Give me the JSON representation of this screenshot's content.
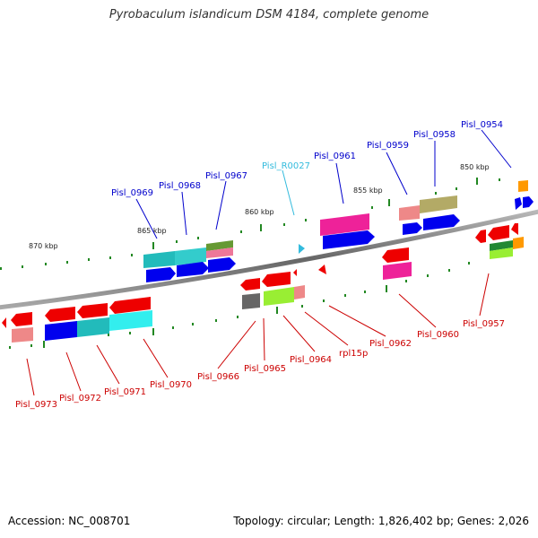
{
  "title": "Pyrobaculum islandicum DSM 4184, complete genome",
  "footer": {
    "accession": "Accession: NC_008701",
    "summary": "Topology: circular; Length: 1,826,402 bp; Genes: 2,026"
  },
  "colors": {
    "forward_label": "#0000cc",
    "reverse_label": "#cc0000",
    "rna_label": "#33bbdd",
    "backbone": "#888888"
  },
  "scale_labels": [
    "870 kbp",
    "865 kbp",
    "860 kbp",
    "855 kbp",
    "850 kbp"
  ],
  "forward_genes": [
    "Pisl_0969",
    "Pisl_0968",
    "Pisl_0967",
    "Pisl_R0027",
    "Pisl_0961",
    "Pisl_0959",
    "Pisl_0958",
    "Pisl_0954"
  ],
  "reverse_genes": [
    "Pisl_0973",
    "Pisl_0972",
    "Pisl_0971",
    "Pisl_0970",
    "Pisl_0966",
    "Pisl_0965",
    "Pisl_0964",
    "rpl15p",
    "Pisl_0962",
    "Pisl_0960",
    "Pisl_0957"
  ]
}
